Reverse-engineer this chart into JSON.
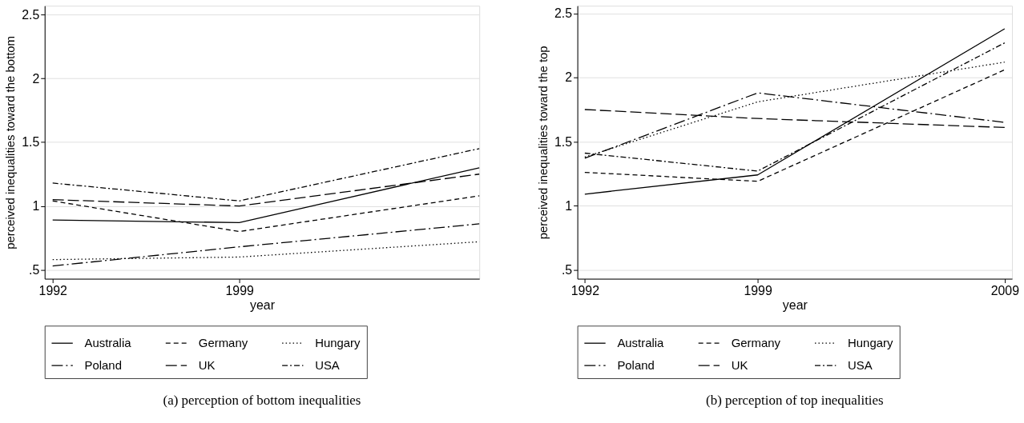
{
  "chart_data": [
    {
      "type": "line",
      "title": "(a) perception of bottom inequalities",
      "xlabel": "year",
      "ylabel": "perceived inequalities toward the bottom",
      "x": [
        1992,
        1999,
        2008
      ],
      "xlim": [
        1991.7,
        2008
      ],
      "xticks": [
        1992,
        1999
      ],
      "ylim": [
        0.43,
        2.57
      ],
      "yticks": [
        {
          "value": 0.5,
          "label": ".5"
        },
        1,
        1.5,
        2,
        2.5
      ],
      "grid": "y",
      "legend": "bottom",
      "series": [
        {
          "name": "Australia",
          "color": "#000000",
          "line_style": "solid",
          "values": [
            0.89,
            0.87,
            1.3
          ]
        },
        {
          "name": "Germany",
          "color": "#000000",
          "line_style": "dashed",
          "values": [
            1.04,
            0.8,
            1.08
          ]
        },
        {
          "name": "Hungary",
          "color": "#000000",
          "line_style": "dotted",
          "values": [
            0.58,
            0.6,
            0.72
          ]
        },
        {
          "name": "Poland",
          "color": "#000000",
          "line_style": "longdashdot",
          "values": [
            0.53,
            0.68,
            0.86
          ]
        },
        {
          "name": "UK",
          "color": "#000000",
          "line_style": "longdash",
          "values": [
            1.05,
            1.0,
            1.25
          ]
        },
        {
          "name": "USA",
          "color": "#000000",
          "line_style": "dashdot",
          "values": [
            1.18,
            1.04,
            1.45
          ]
        }
      ]
    },
    {
      "type": "line",
      "title": "(b) perception of top inequalities",
      "xlabel": "year",
      "ylabel": "perceived inequalities toward the top",
      "x": [
        1992,
        1999,
        2009
      ],
      "xlim": [
        1991.7,
        2009.3
      ],
      "xticks": [
        1992,
        1999,
        2009
      ],
      "ylim": [
        0.43,
        2.56
      ],
      "yticks": [
        {
          "value": 0.5,
          "label": ".5"
        },
        1,
        1.5,
        2,
        2.5
      ],
      "grid": "y",
      "legend": "bottom",
      "series": [
        {
          "name": "Australia",
          "color": "#000000",
          "line_style": "solid",
          "values": [
            1.09,
            1.24,
            2.38
          ]
        },
        {
          "name": "Germany",
          "color": "#000000",
          "line_style": "dashed",
          "values": [
            1.26,
            1.19,
            2.06
          ]
        },
        {
          "name": "Hungary",
          "color": "#000000",
          "line_style": "dotted",
          "values": [
            1.38,
            1.81,
            2.12
          ]
        },
        {
          "name": "Poland",
          "color": "#000000",
          "line_style": "longdashdot",
          "values": [
            1.37,
            1.88,
            1.65
          ]
        },
        {
          "name": "UK",
          "color": "#000000",
          "line_style": "longdash",
          "values": [
            1.75,
            1.68,
            1.61
          ]
        },
        {
          "name": "USA",
          "color": "#000000",
          "line_style": "dashdot",
          "values": [
            1.41,
            1.27,
            2.27
          ]
        }
      ]
    }
  ]
}
